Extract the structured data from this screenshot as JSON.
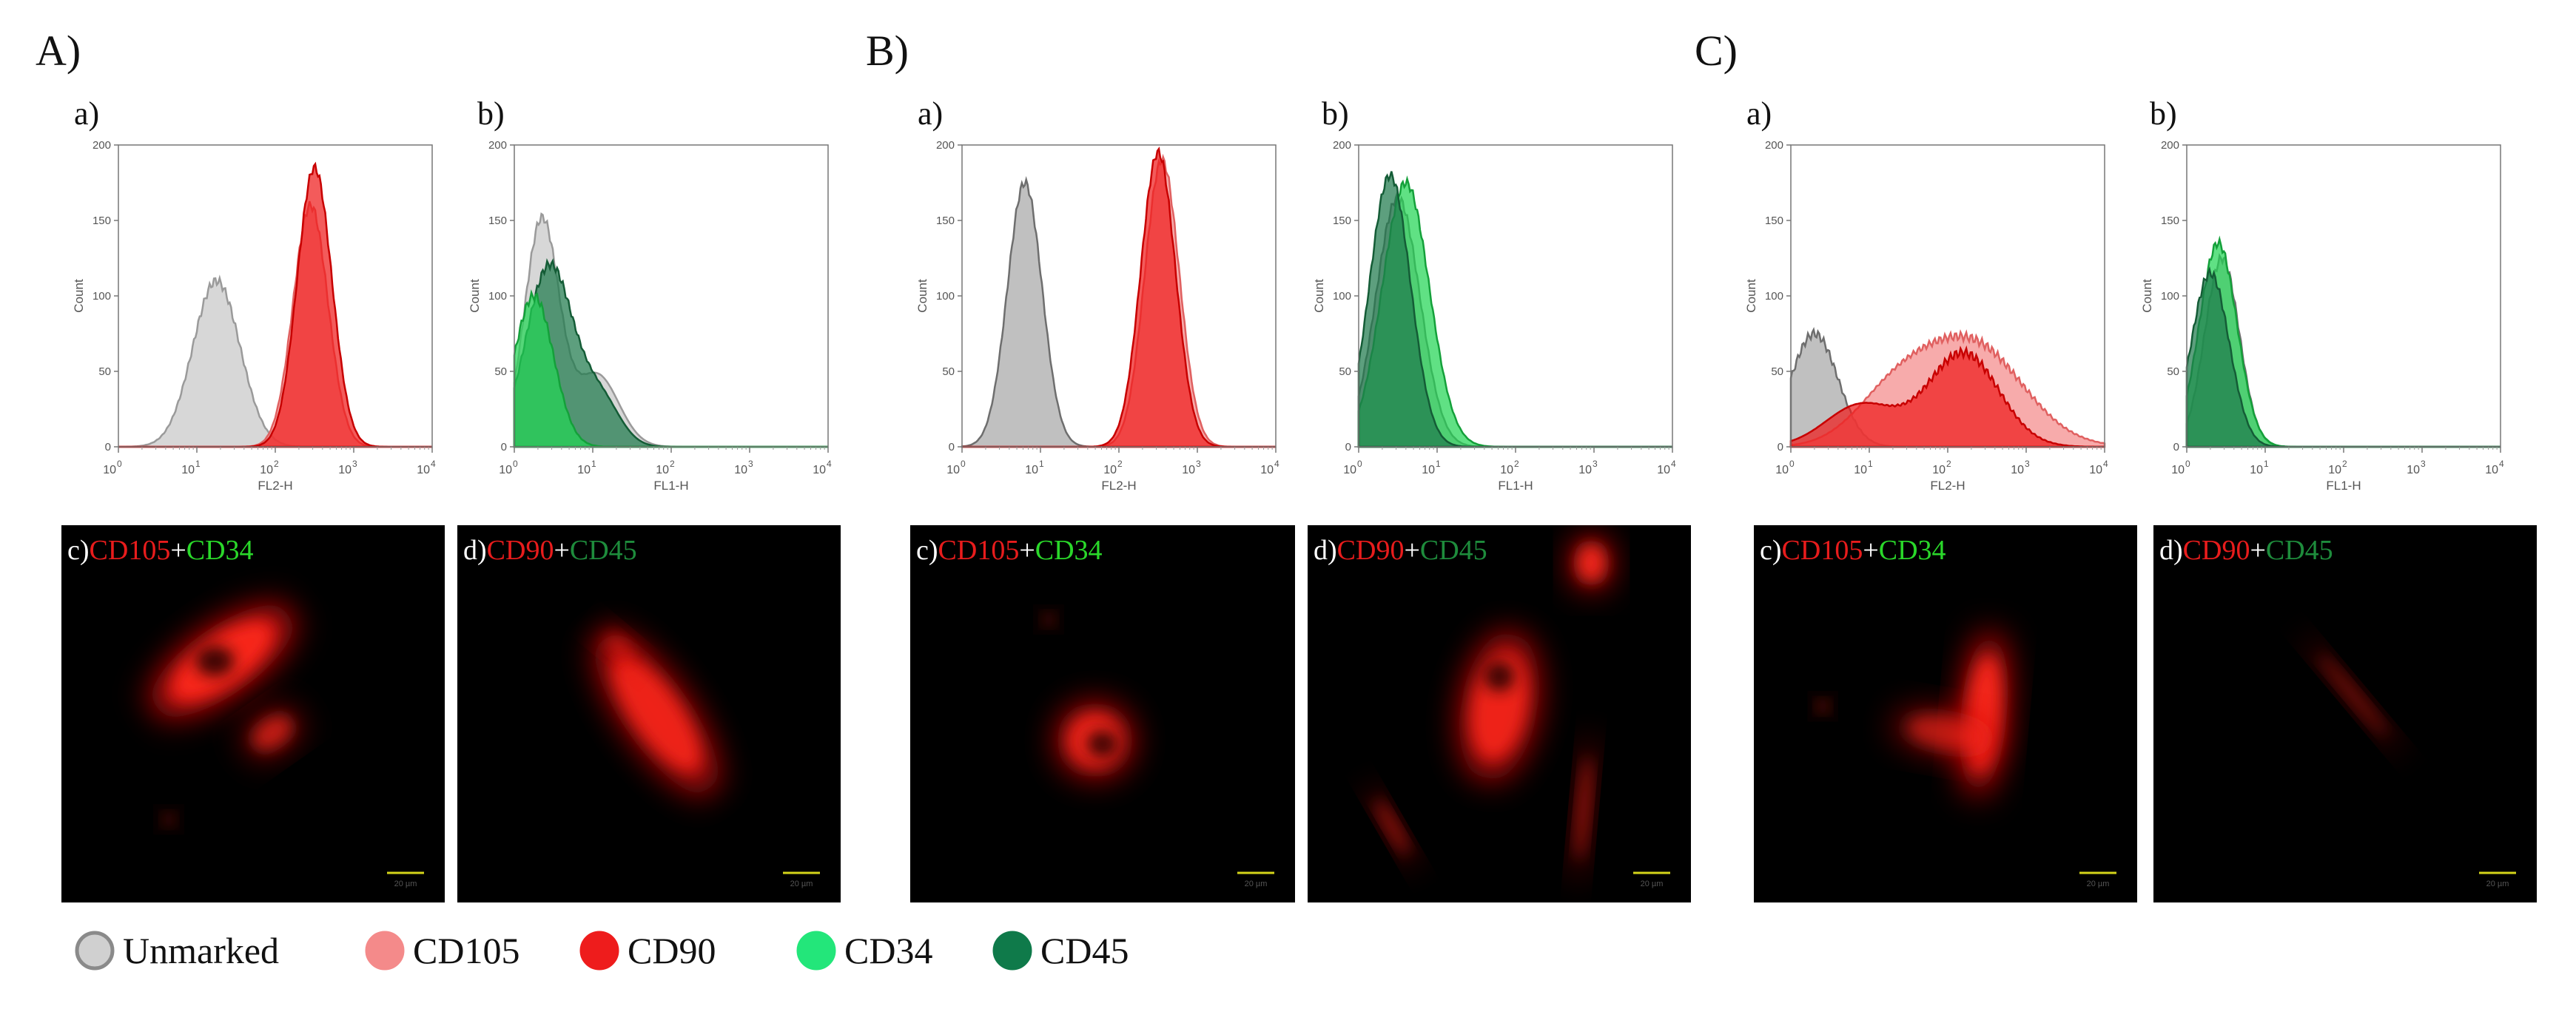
{
  "chart_data": [
    {
      "type": "histogram",
      "group": "A)",
      "panel": "a)",
      "xlabel": "FL2-H",
      "ylabel": "Count",
      "xscale": "log",
      "xlim": [
        1,
        10000
      ],
      "ylim": [
        0,
        200
      ],
      "xticks": [
        "10",
        "10",
        "10",
        "10",
        "10"
      ],
      "xtick_exp": [
        "0",
        "1",
        "2",
        "3",
        "4"
      ],
      "yticks": [
        "0",
        "50",
        "100",
        "150",
        "200"
      ],
      "series": [
        {
          "legend": "Unmarked",
          "color": "#c8c8c8",
          "edge": "#9a9a9a",
          "peaks": [
            [
              1.25,
              0.3,
              110
            ]
          ]
        },
        {
          "legend": "CD105",
          "color": "#f48a8a",
          "edge": "#e06060",
          "peaks": [
            [
              2.45,
              0.22,
              160
            ]
          ]
        },
        {
          "legend": "CD90",
          "color": "#ee1c1c",
          "edge": "#c80000",
          "peaks": [
            [
              2.5,
              0.22,
              185
            ]
          ]
        }
      ]
    },
    {
      "type": "histogram",
      "group": "A)",
      "panel": "b)",
      "xlabel": "FL1-H",
      "ylabel": "Count",
      "xscale": "log",
      "xlim": [
        1,
        10000
      ],
      "ylim": [
        0,
        200
      ],
      "xticks": [
        "10",
        "10",
        "10",
        "10",
        "10"
      ],
      "xtick_exp": [
        "0",
        "1",
        "2",
        "3",
        "4"
      ],
      "yticks": [
        "0",
        "50",
        "100",
        "150",
        "200"
      ],
      "series": [
        {
          "legend": "Unmarked",
          "color": "#c8c8c8",
          "edge": "#9a9a9a",
          "peaks": [
            [
              0.35,
              0.22,
              150
            ],
            [
              1.05,
              0.28,
              48
            ]
          ]
        },
        {
          "legend": "CD45",
          "color": "#1f7a4c",
          "edge": "#145c36",
          "peaks": [
            [
              0.45,
              0.3,
              120
            ],
            [
              1.1,
              0.25,
              30
            ]
          ]
        },
        {
          "legend": "CD34",
          "color": "#23d655",
          "edge": "#14a03a",
          "peaks": [
            [
              0.25,
              0.25,
              100
            ]
          ]
        }
      ]
    },
    {
      "type": "histogram",
      "group": "B)",
      "panel": "a)",
      "xlabel": "FL2-H",
      "ylabel": "Count",
      "xscale": "log",
      "xlim": [
        1,
        10000
      ],
      "ylim": [
        0,
        200
      ],
      "xticks": [
        "10",
        "10",
        "10",
        "10",
        "10"
      ],
      "xtick_exp": [
        "0",
        "1",
        "2",
        "3",
        "4"
      ],
      "yticks": [
        "0",
        "50",
        "100",
        "150",
        "200"
      ],
      "series": [
        {
          "legend": "Unmarked",
          "color": "#a8a8a8",
          "edge": "#6e6e6e",
          "peaks": [
            [
              0.8,
              0.22,
              175
            ]
          ]
        },
        {
          "legend": "CD105",
          "color": "#f48a8a",
          "edge": "#e06060",
          "peaks": [
            [
              2.55,
              0.22,
              190
            ]
          ]
        },
        {
          "legend": "CD90",
          "color": "#ee1c1c",
          "edge": "#c80000",
          "peaks": [
            [
              2.5,
              0.22,
              195
            ]
          ]
        }
      ]
    },
    {
      "type": "histogram",
      "group": "B)",
      "panel": "b)",
      "xlabel": "FL1-H",
      "ylabel": "Count",
      "xscale": "log",
      "xlim": [
        1,
        10000
      ],
      "ylim": [
        0,
        200
      ],
      "xticks": [
        "10",
        "10",
        "10",
        "10",
        "10"
      ],
      "xtick_exp": [
        "0",
        "1",
        "2",
        "3",
        "4"
      ],
      "yticks": [
        "0",
        "50",
        "100",
        "150",
        "200"
      ],
      "series": [
        {
          "legend": "Unmarked",
          "color": "#a8a8a8",
          "edge": "#6e6e6e",
          "peaks": [
            [
              0.5,
              0.28,
              165
            ]
          ]
        },
        {
          "legend": "CD34",
          "color": "#23d655",
          "edge": "#14a03a",
          "peaks": [
            [
              0.6,
              0.3,
              175
            ]
          ]
        },
        {
          "legend": "CD45",
          "color": "#1f7a4c",
          "edge": "#145c36",
          "peaks": [
            [
              0.4,
              0.26,
              180
            ]
          ]
        }
      ]
    },
    {
      "type": "histogram",
      "group": "C)",
      "panel": "a)",
      "xlabel": "FL2-H",
      "ylabel": "Count",
      "xscale": "log",
      "xlim": [
        1,
        10000
      ],
      "ylim": [
        0,
        200
      ],
      "xticks": [
        "10",
        "10",
        "10",
        "10",
        "10"
      ],
      "xtick_exp": [
        "0",
        "1",
        "2",
        "3",
        "4"
      ],
      "yticks": [
        "0",
        "50",
        "100",
        "150",
        "200"
      ],
      "series": [
        {
          "legend": "Unmarked",
          "color": "#a8a8a8",
          "edge": "#6e6e6e",
          "peaks": [
            [
              0.3,
              0.3,
              75
            ]
          ]
        },
        {
          "legend": "CD105",
          "color": "#f48a8a",
          "edge": "#e06060",
          "peaks": [
            [
              2.3,
              0.65,
              68
            ],
            [
              1.3,
              0.5,
              30
            ]
          ]
        },
        {
          "legend": "CD90",
          "color": "#ee1c1c",
          "edge": "#c80000",
          "peaks": [
            [
              2.2,
              0.45,
              62
            ],
            [
              0.9,
              0.45,
              28
            ]
          ]
        }
      ]
    },
    {
      "type": "histogram",
      "group": "C)",
      "panel": "b)",
      "xlabel": "FL1-H",
      "ylabel": "Count",
      "xscale": "log",
      "xlim": [
        1,
        10000
      ],
      "ylim": [
        0,
        200
      ],
      "xticks": [
        "10",
        "10",
        "10",
        "10",
        "10"
      ],
      "xtick_exp": [
        "0",
        "1",
        "2",
        "3",
        "4"
      ],
      "yticks": [
        "0",
        "50",
        "100",
        "150",
        "200"
      ],
      "series": [
        {
          "legend": "Unmarked",
          "color": "#a8a8a8",
          "edge": "#6e6e6e",
          "peaks": [
            [
              0.45,
              0.22,
              125
            ]
          ]
        },
        {
          "legend": "CD34",
          "color": "#23d655",
          "edge": "#14a03a",
          "peaks": [
            [
              0.4,
              0.24,
              135
            ]
          ]
        },
        {
          "legend": "CD45",
          "color": "#1f7a4c",
          "edge": "#145c36",
          "peaks": [
            [
              0.3,
              0.24,
              115
            ]
          ]
        }
      ]
    }
  ],
  "groups": [
    {
      "label": "A)",
      "sub_a": "a)",
      "sub_b": "b)"
    },
    {
      "label": "B)",
      "sub_a": "a)",
      "sub_b": "b)"
    },
    {
      "label": "C)",
      "sub_a": "a)",
      "sub_b": "b)"
    }
  ],
  "micrographs": [
    {
      "letter": "c)",
      "m1": "CD105",
      "plus": "+",
      "m2": "CD34",
      "m2color": "#2ad82a",
      "scale": "20 µm",
      "blobs": [
        [
          0.42,
          0.36,
          0.22,
          0.09,
          -35,
          1.0
        ],
        [
          0.55,
          0.55,
          0.08,
          0.05,
          -35,
          0.7
        ],
        [
          0.28,
          0.78,
          0.02,
          0.02,
          0,
          0.5
        ]
      ],
      "nucleus": [
        0.4,
        0.36,
        0.05,
        0.04
      ]
    },
    {
      "letter": "d)",
      "m1": "CD90",
      "plus": "+",
      "m2": "CD45",
      "m2color": "#1e8c3c",
      "scale": "20 µm",
      "blobs": [
        [
          0.52,
          0.5,
          0.25,
          0.09,
          55,
          0.9
        ],
        [
          0.42,
          0.32,
          0.06,
          0.03,
          40,
          0.5
        ]
      ],
      "nucleus": null
    },
    {
      "letter": "c)",
      "m1": "CD105",
      "plus": "+",
      "m2": "CD34",
      "m2color": "#2ad82a",
      "scale": "20 µm",
      "blobs": [
        [
          0.48,
          0.57,
          0.1,
          0.1,
          0,
          0.9
        ],
        [
          0.36,
          0.25,
          0.02,
          0.02,
          0,
          0.5
        ]
      ],
      "nucleus": [
        0.5,
        0.58,
        0.04,
        0.035
      ]
    },
    {
      "letter": "d)",
      "m1": "CD90",
      "plus": "+",
      "m2": "CD45",
      "m2color": "#1e8c3c",
      "scale": "20 µm",
      "blobs": [
        [
          0.5,
          0.48,
          0.1,
          0.2,
          10,
          0.9
        ],
        [
          0.74,
          0.1,
          0.05,
          0.07,
          0,
          1.0
        ],
        [
          0.22,
          0.8,
          0.12,
          0.02,
          60,
          0.6
        ],
        [
          0.72,
          0.75,
          0.02,
          0.2,
          5,
          0.6
        ]
      ],
      "nucleus": [
        0.5,
        0.4,
        0.04,
        0.04
      ]
    },
    {
      "letter": "c)",
      "m1": "CD105",
      "plus": "+",
      "m2": "CD34",
      "m2color": "#2ad82a",
      "scale": "20 µm",
      "blobs": [
        [
          0.6,
          0.5,
          0.06,
          0.22,
          5,
          1.0
        ],
        [
          0.5,
          0.55,
          0.14,
          0.06,
          10,
          0.6
        ],
        [
          0.18,
          0.48,
          0.02,
          0.02,
          0,
          0.6
        ]
      ],
      "nucleus": null
    },
    {
      "letter": "d)",
      "m1": "CD90",
      "plus": "+",
      "m2": "CD45",
      "m2color": "#1e8c3c",
      "scale": "20 µm",
      "blobs": [
        [
          0.52,
          0.45,
          0.2,
          0.02,
          50,
          0.45
        ]
      ],
      "nucleus": null
    }
  ],
  "legend": [
    {
      "label": "Unmarked",
      "color": "#d0d0d0",
      "edge": "#8a8a8a"
    },
    {
      "label": "CD105",
      "color": "#f48a8a",
      "edge": "#f48a8a"
    },
    {
      "label": "CD90",
      "color": "#ee1c1c",
      "edge": "#ee1c1c"
    },
    {
      "label": "CD34",
      "color": "#23e67a",
      "edge": "#23e67a"
    },
    {
      "label": "CD45",
      "color": "#0f7a4a",
      "edge": "#0f7a4a"
    }
  ],
  "colors": {
    "m1": "#e81c1c",
    "prefix": "#ffffff",
    "plus": "#ffffff",
    "scalebar": "#d4d41a"
  }
}
